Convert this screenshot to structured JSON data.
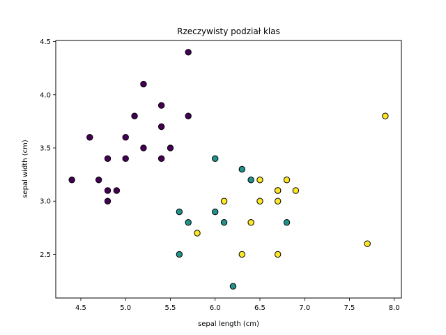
{
  "chart_data": {
    "type": "scatter",
    "title": "Rzeczywisty podział klas",
    "xlabel": "sepal length (cm)",
    "ylabel": "sepal width (cm)",
    "xlim": [
      4.22,
      8.08
    ],
    "ylim": [
      2.09,
      4.51
    ],
    "xticks": [
      "4.5",
      "5.0",
      "5.5",
      "6.0",
      "6.5",
      "7.0",
      "7.5",
      "8.0"
    ],
    "yticks": [
      "2.5",
      "3.0",
      "3.5",
      "4.0",
      "4.5"
    ],
    "grid": false,
    "legend": "none",
    "series": [
      {
        "color": "#440154",
        "points": [
          [
            5.7,
            4.4
          ],
          [
            5.2,
            4.1
          ],
          [
            5.4,
            3.9
          ],
          [
            5.1,
            3.8
          ],
          [
            5.7,
            3.8
          ],
          [
            5.4,
            3.7
          ],
          [
            4.6,
            3.6
          ],
          [
            5.0,
            3.6
          ],
          [
            5.2,
            3.5
          ],
          [
            5.5,
            3.5
          ],
          [
            4.8,
            3.4
          ],
          [
            5.0,
            3.4
          ],
          [
            5.4,
            3.4
          ],
          [
            4.4,
            3.2
          ],
          [
            4.7,
            3.2
          ],
          [
            4.8,
            3.1
          ],
          [
            4.9,
            3.1
          ],
          [
            4.8,
            3.0
          ]
        ]
      },
      {
        "color": "#21918c",
        "points": [
          [
            6.0,
            3.4
          ],
          [
            6.3,
            3.3
          ],
          [
            6.4,
            3.2
          ],
          [
            6.7,
            3.1
          ],
          [
            6.0,
            2.9
          ],
          [
            5.6,
            2.9
          ],
          [
            5.7,
            2.8
          ],
          [
            6.1,
            2.8
          ],
          [
            6.8,
            2.8
          ],
          [
            5.6,
            2.5
          ],
          [
            6.2,
            2.2
          ]
        ]
      },
      {
        "color": "#fde725",
        "points": [
          [
            7.9,
            3.8
          ],
          [
            6.5,
            3.2
          ],
          [
            6.8,
            3.2
          ],
          [
            6.7,
            3.1
          ],
          [
            6.9,
            3.1
          ],
          [
            6.1,
            3.0
          ],
          [
            6.5,
            3.0
          ],
          [
            6.7,
            3.0
          ],
          [
            6.4,
            2.8
          ],
          [
            5.8,
            2.7
          ],
          [
            7.7,
            2.6
          ],
          [
            6.3,
            2.5
          ],
          [
            6.7,
            2.5
          ]
        ]
      }
    ]
  }
}
